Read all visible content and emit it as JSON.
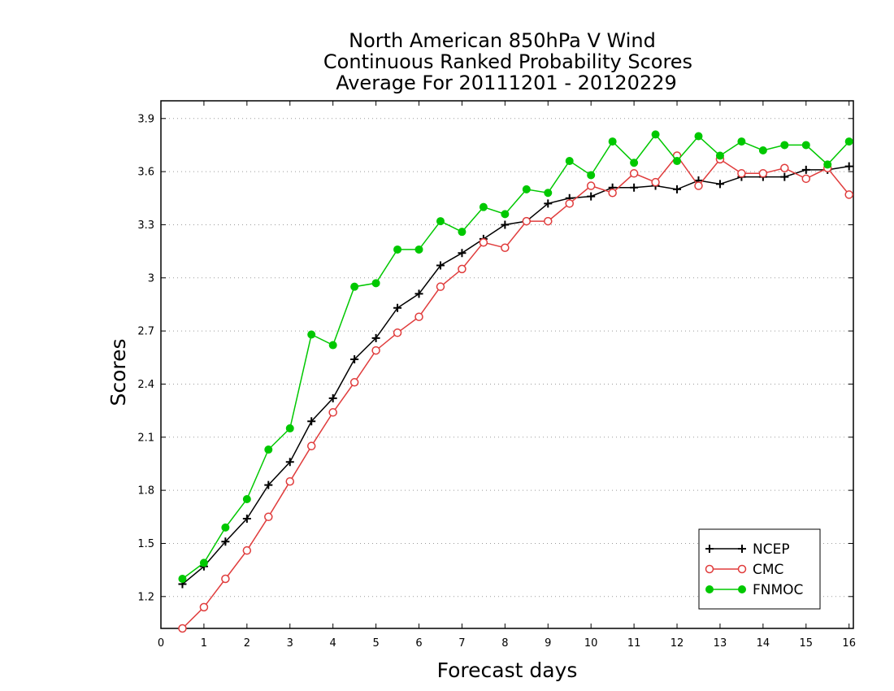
{
  "chart_data": {
    "type": "line",
    "title": [
      "North American 850hPa V Wind",
      "Continuous Ranked Probability Scores",
      "Average For 20111201 - 20120229"
    ],
    "xlabel": "Forecast days",
    "ylabel": "Scores",
    "xlim": [
      0,
      16.1
    ],
    "ylim": [
      1.02,
      4.0
    ],
    "xticks": [
      0,
      1,
      2,
      3,
      4,
      5,
      6,
      7,
      8,
      9,
      10,
      11,
      12,
      13,
      14,
      15,
      16
    ],
    "xtick_labels": [
      "0",
      "1",
      "2",
      "3",
      "4",
      "5",
      "6",
      "7",
      "8",
      "9",
      "10",
      "11",
      "12",
      "13",
      "14",
      "15",
      "16"
    ],
    "yticks": [
      1.2,
      1.5,
      1.8,
      2.1,
      2.4,
      2.7,
      3.0,
      3.3,
      3.6,
      3.9
    ],
    "ytick_labels": [
      "1.2",
      "1.5",
      "1.8",
      "2.1",
      "2.4",
      "2.7",
      "3",
      "3.3",
      "3.6",
      "3.9"
    ],
    "grid": "horizontal dotted",
    "legend_position": "bottom-right",
    "x": [
      0.5,
      1.0,
      1.5,
      2.0,
      2.5,
      3.0,
      3.5,
      4.0,
      4.5,
      5.0,
      5.5,
      6.0,
      6.5,
      7.0,
      7.5,
      8.0,
      8.5,
      9.0,
      9.5,
      10.0,
      10.5,
      11.0,
      11.5,
      12.0,
      12.5,
      13.0,
      13.5,
      14.0,
      14.5,
      15.0,
      15.5,
      16.0
    ],
    "series": [
      {
        "name": "NCEP",
        "color": "#000000",
        "marker": "plus",
        "values": [
          1.27,
          1.37,
          1.51,
          1.64,
          1.83,
          1.96,
          2.19,
          2.32,
          2.54,
          2.66,
          2.83,
          2.91,
          3.07,
          3.14,
          3.22,
          3.3,
          3.32,
          3.42,
          3.45,
          3.46,
          3.51,
          3.51,
          3.52,
          3.5,
          3.55,
          3.53,
          3.57,
          3.57,
          3.57,
          3.61,
          3.61,
          3.63
        ]
      },
      {
        "name": "CMC",
        "color": "#e03c3c",
        "marker": "open-circle",
        "values": [
          1.02,
          1.14,
          1.3,
          1.46,
          1.65,
          1.85,
          2.05,
          2.24,
          2.41,
          2.59,
          2.69,
          2.78,
          2.95,
          3.05,
          3.2,
          3.17,
          3.32,
          3.32,
          3.42,
          3.52,
          3.48,
          3.59,
          3.54,
          3.69,
          3.52,
          3.67,
          3.59,
          3.59,
          3.62,
          3.56,
          3.62,
          3.47
        ]
      },
      {
        "name": "FNMOC",
        "color": "#00c800",
        "marker": "filled-circle",
        "values": [
          1.3,
          1.39,
          1.59,
          1.75,
          2.03,
          2.15,
          2.68,
          2.62,
          2.95,
          2.97,
          3.16,
          3.16,
          3.32,
          3.26,
          3.4,
          3.36,
          3.5,
          3.48,
          3.66,
          3.58,
          3.77,
          3.65,
          3.81,
          3.66,
          3.8,
          3.69,
          3.77,
          3.72,
          3.75,
          3.75,
          3.64,
          3.77
        ]
      }
    ]
  }
}
